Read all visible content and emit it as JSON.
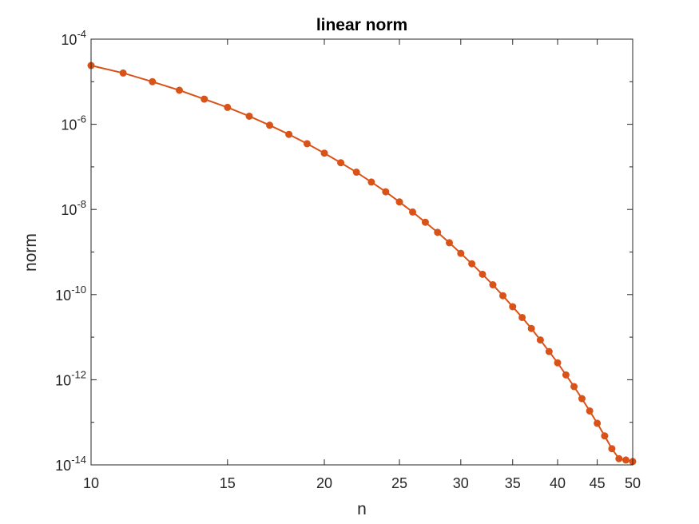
{
  "chart_data": {
    "type": "line",
    "title": "linear norm",
    "xlabel": "n",
    "ylabel": "norm",
    "xscale": "log",
    "yscale": "log",
    "xlim": [
      10,
      50
    ],
    "ylim": [
      1e-14,
      0.0001
    ],
    "grid": false,
    "box": true,
    "x_ticks": [
      10,
      15,
      20,
      25,
      30,
      35,
      40,
      45,
      50
    ],
    "x_tick_labels": [
      "10",
      "15",
      "20",
      "25",
      "30",
      "35",
      "40",
      "45",
      "50"
    ],
    "y_ticks": [
      1e-14,
      1e-12,
      1e-10,
      1e-08,
      1e-06,
      0.0001
    ],
    "y_tick_labels": [
      {
        "base": "10",
        "exp": "-14"
      },
      {
        "base": "10",
        "exp": "-12"
      },
      {
        "base": "10",
        "exp": "-10"
      },
      {
        "base": "10",
        "exp": "-8"
      },
      {
        "base": "10",
        "exp": "-6"
      },
      {
        "base": "10",
        "exp": "-4"
      }
    ],
    "series": [
      {
        "color": "#d95319",
        "marker": "circle",
        "x": [
          10,
          11,
          12,
          13,
          14,
          15,
          16,
          17,
          18,
          19,
          20,
          21,
          22,
          23,
          24,
          25,
          26,
          27,
          28,
          29,
          30,
          31,
          32,
          33,
          34,
          35,
          36,
          37,
          38,
          39,
          40,
          41,
          42,
          43,
          44,
          45,
          46,
          47,
          48,
          49,
          50
        ],
        "y": [
          2.4e-05,
          1.6e-05,
          1e-05,
          6.3e-06,
          3.9e-06,
          2.5e-06,
          1.55e-06,
          9.5e-07,
          5.8e-07,
          3.5e-07,
          2.1e-07,
          1.25e-07,
          7.5e-08,
          4.4e-08,
          2.6e-08,
          1.5e-08,
          8.7e-09,
          5e-09,
          2.9e-09,
          1.65e-09,
          9.3e-10,
          5.3e-10,
          3e-10,
          1.7e-10,
          9.4e-11,
          5.2e-11,
          2.9e-11,
          1.6e-11,
          8.6e-12,
          4.6e-12,
          2.5e-12,
          1.3e-12,
          6.9e-13,
          3.6e-13,
          1.85e-13,
          9.5e-14,
          4.8e-14,
          2.4e-14,
          1.4e-14,
          1.3e-14,
          1.2e-14
        ]
      }
    ]
  }
}
